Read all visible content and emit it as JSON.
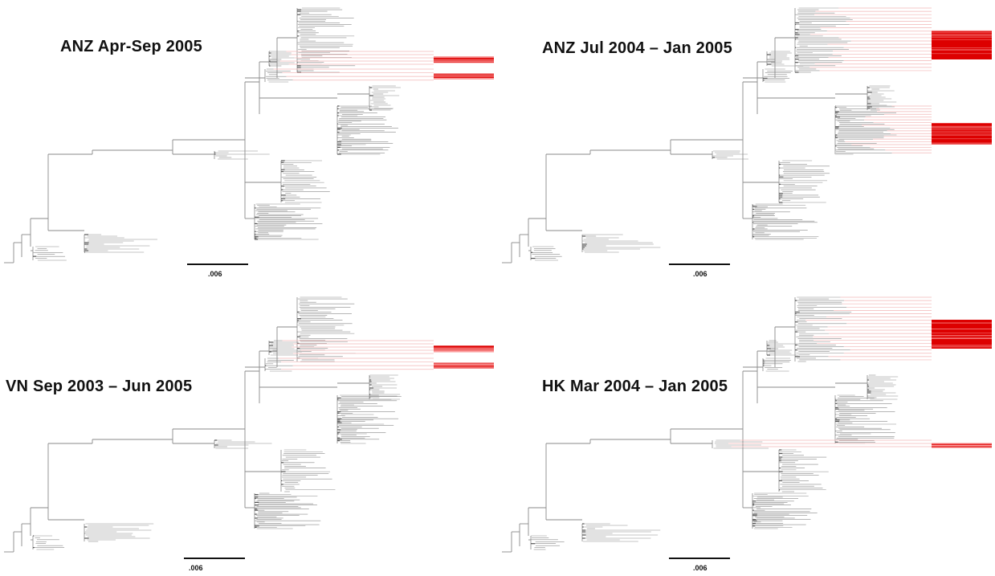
{
  "panels": [
    {
      "title": "ANZ Apr-Sep 2005",
      "scale_label": ".006",
      "highlight_clades": [
        "upper-a",
        "upper-b"
      ]
    },
    {
      "title": "ANZ Jul 2004 – Jan 2005",
      "scale_label": ".006",
      "highlight_clades": [
        "top",
        "middle"
      ]
    },
    {
      "title": "VN Sep 2003 – Jun 2005",
      "scale_label": ".006",
      "highlight_clades": [
        "top-right",
        "upper-a",
        "upper-b"
      ]
    },
    {
      "title": "HK Mar 2004 – Jan 2005",
      "scale_label": ".006",
      "highlight_clades": [
        "top",
        "lower-middle"
      ]
    }
  ],
  "colors": {
    "branch": "#8a8a8a",
    "highlight": "#dd0000",
    "highlight_link": "#f2b6b6",
    "text": "#111111"
  }
}
